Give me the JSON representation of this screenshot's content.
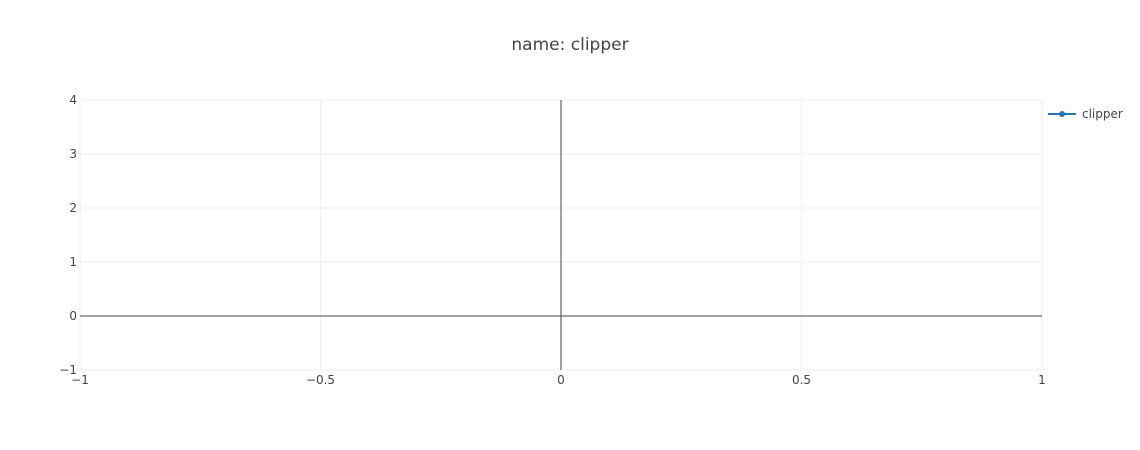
{
  "chart_data": {
    "type": "line",
    "title": "name: clipper",
    "xlabel": "",
    "ylabel": "",
    "xlim": [
      -1,
      1
    ],
    "ylim": [
      -1,
      4
    ],
    "x_ticks": [
      -1,
      -0.5,
      0,
      0.5,
      1
    ],
    "x_tick_labels": [
      "−1",
      "−0.5",
      "0",
      "0.5",
      "1"
    ],
    "y_ticks": [
      -1,
      0,
      1,
      2,
      3,
      4
    ],
    "y_tick_labels": [
      "−1",
      "0",
      "1",
      "2",
      "3",
      "4"
    ],
    "grid": true,
    "zero_lines": true,
    "legend_position": "top-right",
    "series": [
      {
        "name": "clipper",
        "color": "#1f77b4",
        "mode": "lines+markers",
        "x": [],
        "y": []
      }
    ]
  }
}
